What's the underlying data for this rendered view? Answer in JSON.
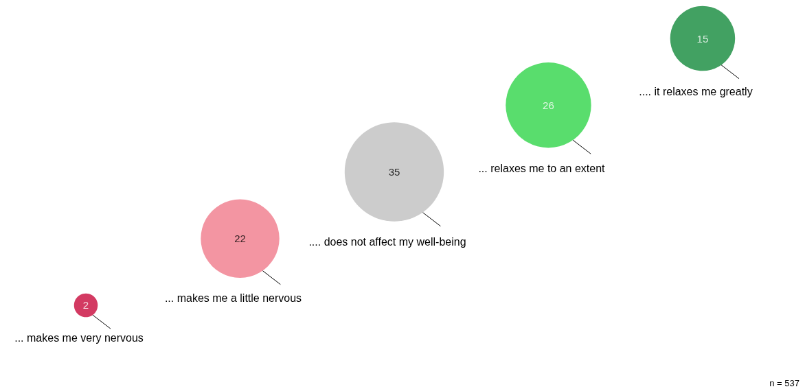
{
  "chart_data": {
    "type": "other",
    "categories": [
      "... makes me very nervous",
      "... makes me a little nervous",
      ".... does not affect my well-being",
      "... relaxes me to an extent",
      ".... it relaxes me greatly"
    ],
    "values": [
      2,
      22,
      35,
      26,
      15
    ],
    "colors": [
      "#c8093b",
      "#f07a8b",
      "#bfbfbf",
      "#2fd448",
      "#138a3b"
    ],
    "data_labels": true,
    "annotations": [
      "n = 537"
    ]
  }
}
